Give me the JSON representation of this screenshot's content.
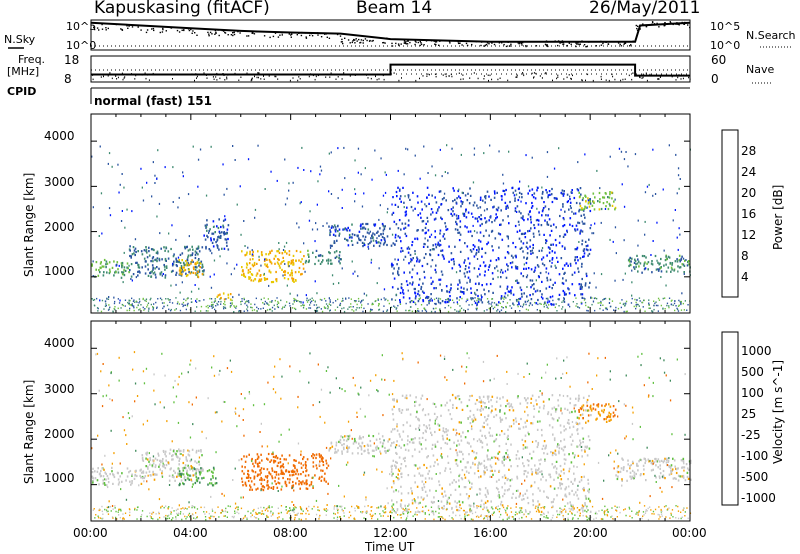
{
  "header": {
    "title": "Kapuskasing (fitACF)",
    "beam": "Beam 14",
    "date": "26/May/2011"
  },
  "summary": {
    "nsky_label": "N.Sky",
    "nsky_ticks": [
      "10^5",
      "10^0"
    ],
    "nsearch_label": "N.Search",
    "nsearch_ticks": [
      "10^5",
      "10^0"
    ],
    "freq_label_1": "Freq.",
    "freq_label_2": "[MHz]",
    "freq_ticks": [
      "18",
      "8"
    ],
    "nave_label": "Nave",
    "nave_ticks": [
      "60",
      "0"
    ],
    "cpid_label": "CPID",
    "cpid_value": "normal (fast) 151"
  },
  "axes": {
    "xlabel": "Time UT",
    "x_ticks": [
      "00:00",
      "04:00",
      "08:00",
      "12:00",
      "16:00",
      "20:00",
      "00:00"
    ],
    "ylabel": "Slant Range [km]",
    "y_ticks": [
      "1000",
      "2000",
      "3000",
      "4000"
    ]
  },
  "power_scale": {
    "label": "Power [dB]",
    "ticks": [
      "4",
      "8",
      "12",
      "16",
      "20",
      "24",
      "28"
    ],
    "colors": [
      "#0018ff",
      "#2a54a0",
      "#3e8a70",
      "#6fc040",
      "#e8c800",
      "#f5a000",
      "#ff6a00",
      "#ff2400"
    ]
  },
  "velocity_scale": {
    "label": "Velocity [m s^-1]",
    "ticks": [
      "1000",
      "500",
      "100",
      "25",
      "-25",
      "-100",
      "-500",
      "-1000"
    ],
    "colors": [
      "#1f3fc8",
      "#3a6a9a",
      "#3e8a5a",
      "#60c040",
      "#c8c8c8",
      "#f5a000",
      "#f06a00",
      "#ff2000",
      "#e00000"
    ]
  },
  "chart_data": [
    {
      "type": "heatmap",
      "title": "Power",
      "xlabel": "Time UT",
      "ylabel": "Slant Range [km]",
      "xlim": [
        0,
        24
      ],
      "ylim": [
        200,
        4600
      ],
      "zlabel": "Power [dB]",
      "zlim": [
        0,
        30
      ],
      "echo_regions": [
        {
          "t": [
            0.0,
            1.5
          ],
          "range": [
            1000,
            1400
          ],
          "level": 12
        },
        {
          "t": [
            1.5,
            4.5
          ],
          "range": [
            1000,
            1700
          ],
          "level": 8
        },
        {
          "t": [
            3.5,
            4.5
          ],
          "range": [
            1000,
            1400
          ],
          "level": 20
        },
        {
          "t": [
            4.5,
            5.5
          ],
          "range": [
            1600,
            2300
          ],
          "level": 6
        },
        {
          "t": [
            5.0,
            5.6
          ],
          "range": [
            500,
            700
          ],
          "level": 20
        },
        {
          "t": [
            6.0,
            8.5
          ],
          "range": [
            900,
            1600
          ],
          "level": 20
        },
        {
          "t": [
            8.5,
            10.0
          ],
          "range": [
            1300,
            1600
          ],
          "level": 10
        },
        {
          "t": [
            9.5,
            12.0
          ],
          "range": [
            1700,
            2200
          ],
          "level": 6
        },
        {
          "t": [
            12.0,
            20.0
          ],
          "range": [
            400,
            3000
          ],
          "level": 4
        },
        {
          "t": [
            19.5,
            21.0
          ],
          "range": [
            2500,
            2900
          ],
          "level": 14
        },
        {
          "t": [
            21.5,
            24.0
          ],
          "range": [
            1100,
            1500
          ],
          "level": 10
        }
      ]
    },
    {
      "type": "heatmap",
      "title": "Velocity",
      "xlabel": "Time UT",
      "ylabel": "Slant Range [km]",
      "xlim": [
        0,
        24
      ],
      "ylim": [
        200,
        4600
      ],
      "zlabel": "Velocity [m s^-1]",
      "zlim": [
        -1000,
        1000
      ],
      "echo_regions": [
        {
          "t": [
            0.0,
            2.0
          ],
          "range": [
            1000,
            1400
          ],
          "level": 0
        },
        {
          "t": [
            2.0,
            4.5
          ],
          "range": [
            1100,
            1800
          ],
          "level": 0
        },
        {
          "t": [
            3.5,
            5.0
          ],
          "range": [
            1000,
            1400
          ],
          "level": 100
        },
        {
          "t": [
            6.0,
            9.5
          ],
          "range": [
            900,
            1700
          ],
          "level": -150
        },
        {
          "t": [
            9.5,
            12.0
          ],
          "range": [
            1700,
            2100
          ],
          "level": 0
        },
        {
          "t": [
            12.0,
            20.0
          ],
          "range": [
            400,
            3000
          ],
          "level": 0
        },
        {
          "t": [
            19.5,
            21.0
          ],
          "range": [
            2400,
            2800
          ],
          "level": -100
        },
        {
          "t": [
            21.0,
            24.0
          ],
          "range": [
            1100,
            1600
          ],
          "level": 0
        }
      ]
    },
    {
      "type": "line",
      "title": "N.Sky / N.Search",
      "xlim": [
        0,
        24
      ],
      "series": [
        {
          "name": "N.Sky",
          "x": [
            0,
            2,
            4,
            6,
            8,
            10,
            12,
            16,
            20,
            21.8,
            22,
            24
          ],
          "values": [
            5,
            4.5,
            4,
            3.5,
            3.2,
            3.0,
            2.0,
            1.5,
            1.5,
            1.5,
            4.5,
            5
          ]
        }
      ]
    },
    {
      "type": "line",
      "title": "Freq. / Nave",
      "xlim": [
        0,
        24
      ],
      "series": [
        {
          "name": "Freq.",
          "x": [
            0,
            12,
            12,
            21.8,
            21.8,
            24
          ],
          "values": [
            10.5,
            10.5,
            15,
            15,
            10,
            10
          ]
        }
      ]
    }
  ]
}
